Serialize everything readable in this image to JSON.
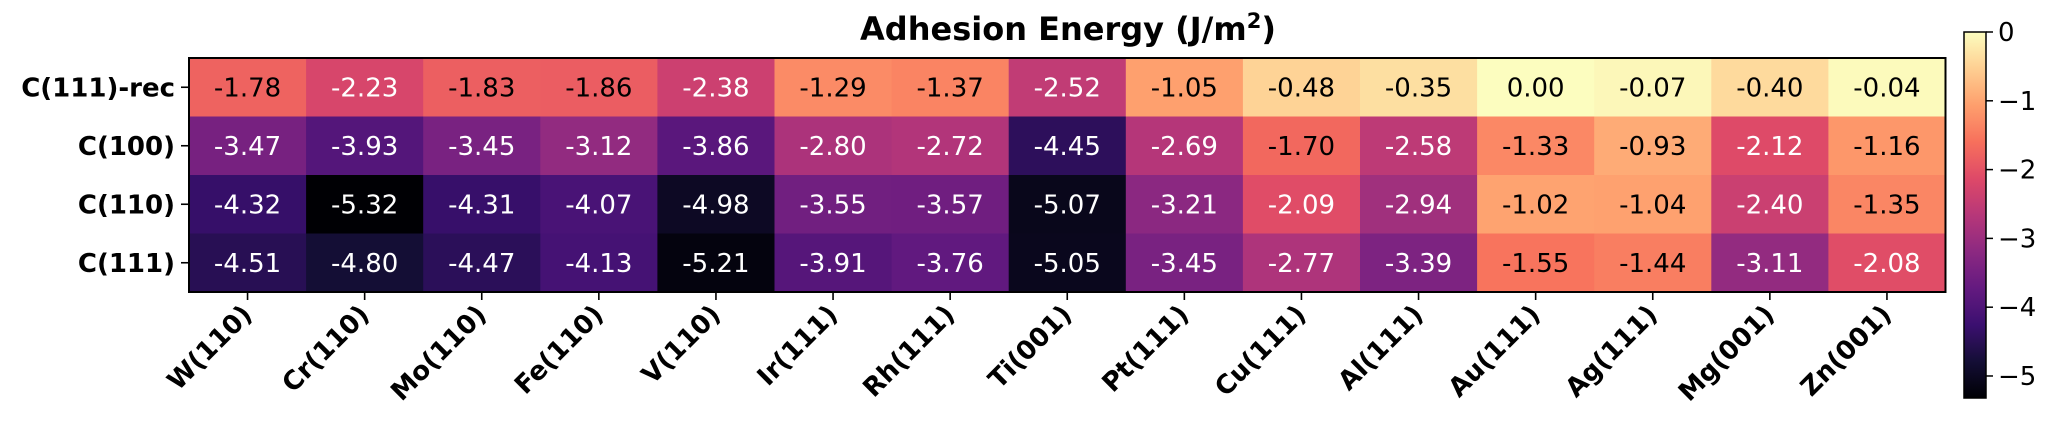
{
  "chart_data": {
    "type": "heatmap",
    "title": "Adhesion Energy (J/m",
    "title_superscript": "2",
    "title_suffix": ")",
    "rows": [
      "C(111)-rec",
      "C(100)",
      "C(110)",
      "C(111)"
    ],
    "columns": [
      "W(110)",
      "Cr(110)",
      "Mo(110)",
      "Fe(110)",
      "V(110)",
      "Ir(111)",
      "Rh(111)",
      "Ti(001)",
      "Pt(111)",
      "Cu(111)",
      "Al(111)",
      "Au(111)",
      "Ag(111)",
      "Mg(001)",
      "Zn(001)"
    ],
    "values": [
      [
        -1.78,
        -2.23,
        -1.83,
        -1.86,
        -2.38,
        -1.29,
        -1.37,
        -2.52,
        -1.05,
        -0.48,
        -0.35,
        0.0,
        -0.07,
        -0.4,
        -0.04
      ],
      [
        -3.47,
        -3.93,
        -3.45,
        -3.12,
        -3.86,
        -2.8,
        -2.72,
        -4.45,
        -2.69,
        -1.7,
        -2.58,
        -1.33,
        -0.93,
        -2.12,
        -1.16
      ],
      [
        -4.32,
        -5.32,
        -4.31,
        -4.07,
        -4.98,
        -3.55,
        -3.57,
        -5.07,
        -3.21,
        -2.09,
        -2.94,
        -1.02,
        -1.04,
        -2.4,
        -1.35
      ],
      [
        -4.51,
        -4.8,
        -4.47,
        -4.13,
        -5.21,
        -3.91,
        -3.76,
        -5.05,
        -3.45,
        -2.77,
        -3.39,
        -1.55,
        -1.44,
        -3.11,
        -2.08
      ]
    ],
    "cell_labels": [
      [
        "-1.78",
        "-2.23",
        "-1.83",
        "-1.86",
        "-2.38",
        "-1.29",
        "-1.37",
        "-2.52",
        "-1.05",
        "-0.48",
        "-0.35",
        "0.00",
        "-0.07",
        "-0.40",
        "-0.04"
      ],
      [
        "-3.47",
        "-3.93",
        "-3.45",
        "-3.12",
        "-3.86",
        "-2.80",
        "-2.72",
        "-4.45",
        "-2.69",
        "-1.70",
        "-2.58",
        "-1.33",
        "-0.93",
        "-2.12",
        "-1.16"
      ],
      [
        "-4.32",
        "-5.32",
        "-4.31",
        "-4.07",
        "-4.98",
        "-3.55",
        "-3.57",
        "-5.07",
        "-3.21",
        "-2.09",
        "-2.94",
        "-1.02",
        "-1.04",
        "-2.40",
        "-1.35"
      ],
      [
        "-4.51",
        "-4.80",
        "-4.47",
        "-4.13",
        "-5.21",
        "-3.91",
        "-3.76",
        "-5.05",
        "-3.45",
        "-2.77",
        "-3.39",
        "-1.55",
        "-1.44",
        "-3.11",
        "-2.08"
      ]
    ],
    "colormap": "magma",
    "vmin": -5.32,
    "vmax": 0.0,
    "colorbar_ticks": [
      0,
      -1,
      -2,
      -3,
      -4,
      -5
    ],
    "colorbar_tick_labels": [
      "0",
      "−1",
      "−2",
      "−3",
      "−4",
      "−5"
    ],
    "colorbar_position": "right"
  }
}
